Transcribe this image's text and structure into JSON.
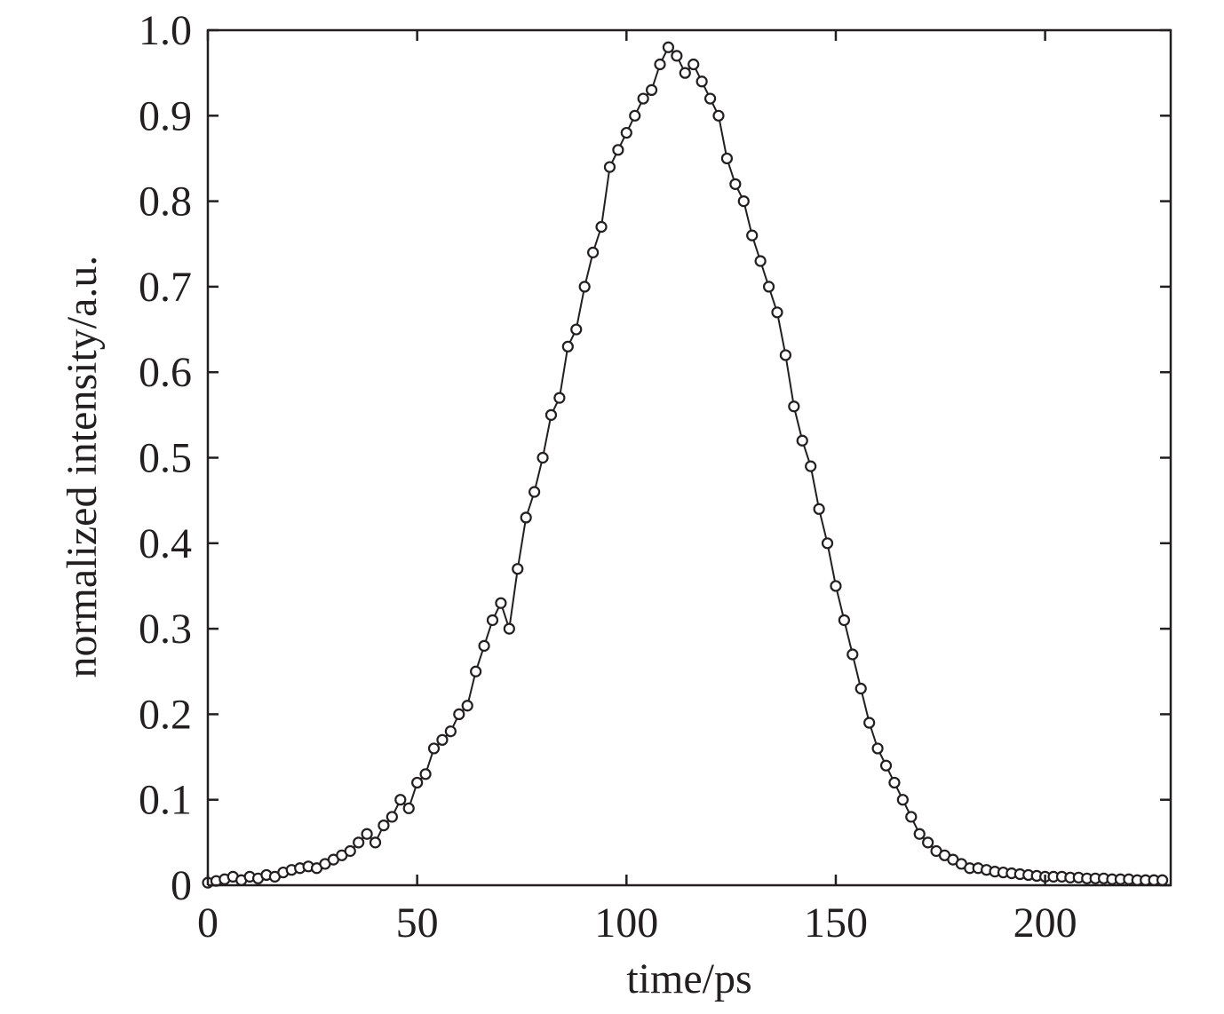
{
  "chart_data": {
    "type": "line",
    "xlabel": "time/ps",
    "ylabel": "normalized intensity/a.u.",
    "xlim": [
      0,
      230
    ],
    "ylim": [
      0,
      1.0
    ],
    "x_ticks": [
      0,
      50,
      100,
      150,
      200
    ],
    "x_tick_labels": [
      "0",
      "50",
      "100",
      "150",
      "200"
    ],
    "y_ticks": [
      0,
      0.1,
      0.2,
      0.3,
      0.4,
      0.5,
      0.6,
      0.7,
      0.8,
      0.9,
      1.0
    ],
    "y_tick_labels": [
      "0",
      "0.1",
      "0.2",
      "0.3",
      "0.4",
      "0.5",
      "0.6",
      "0.7",
      "0.8",
      "0.9",
      "1.0"
    ],
    "grid": false,
    "legend": "none",
    "marker": "open-circle",
    "colors": {
      "line": "#231f20",
      "marker_fill": "#ffffff"
    },
    "series": [
      {
        "x": [
          0,
          2,
          4,
          6,
          8,
          10,
          12,
          14,
          16,
          18,
          20,
          22,
          24,
          26,
          28,
          30,
          32,
          34,
          36,
          38,
          40,
          42,
          44,
          46,
          48,
          50,
          52,
          54,
          56,
          58,
          60,
          62,
          64,
          66,
          68,
          70,
          72,
          74,
          76,
          78,
          80,
          82,
          84,
          86,
          88,
          90,
          92,
          94,
          96,
          98,
          100,
          102,
          104,
          106,
          108,
          110,
          112,
          114,
          116,
          118,
          120,
          122,
          124,
          126,
          128,
          130,
          132,
          134,
          136,
          138,
          140,
          142,
          144,
          146,
          148,
          150,
          152,
          154,
          156,
          158,
          160,
          162,
          164,
          166,
          168,
          170,
          172,
          174,
          176,
          178,
          180,
          182,
          184,
          186,
          188,
          190,
          192,
          194,
          196,
          198,
          200,
          202,
          204,
          206,
          208,
          210,
          212,
          214,
          216,
          218,
          220,
          222,
          224,
          226,
          228
        ],
        "y": [
          0.003,
          0.005,
          0.007,
          0.01,
          0.006,
          0.01,
          0.008,
          0.012,
          0.01,
          0.015,
          0.018,
          0.02,
          0.022,
          0.02,
          0.025,
          0.03,
          0.035,
          0.04,
          0.05,
          0.06,
          0.05,
          0.07,
          0.08,
          0.1,
          0.09,
          0.12,
          0.13,
          0.16,
          0.17,
          0.18,
          0.2,
          0.21,
          0.25,
          0.28,
          0.31,
          0.33,
          0.3,
          0.37,
          0.43,
          0.46,
          0.5,
          0.55,
          0.57,
          0.63,
          0.65,
          0.7,
          0.74,
          0.77,
          0.84,
          0.86,
          0.88,
          0.9,
          0.92,
          0.93,
          0.96,
          0.98,
          0.97,
          0.95,
          0.96,
          0.94,
          0.92,
          0.9,
          0.85,
          0.82,
          0.8,
          0.76,
          0.73,
          0.7,
          0.67,
          0.62,
          0.56,
          0.52,
          0.49,
          0.44,
          0.4,
          0.35,
          0.31,
          0.27,
          0.23,
          0.19,
          0.16,
          0.14,
          0.12,
          0.1,
          0.08,
          0.06,
          0.05,
          0.04,
          0.035,
          0.03,
          0.025,
          0.02,
          0.02,
          0.018,
          0.016,
          0.015,
          0.014,
          0.013,
          0.012,
          0.011,
          0.01,
          0.01,
          0.01,
          0.009,
          0.009,
          0.008,
          0.008,
          0.008,
          0.007,
          0.007,
          0.007,
          0.006,
          0.006,
          0.006,
          0.006
        ]
      }
    ]
  }
}
